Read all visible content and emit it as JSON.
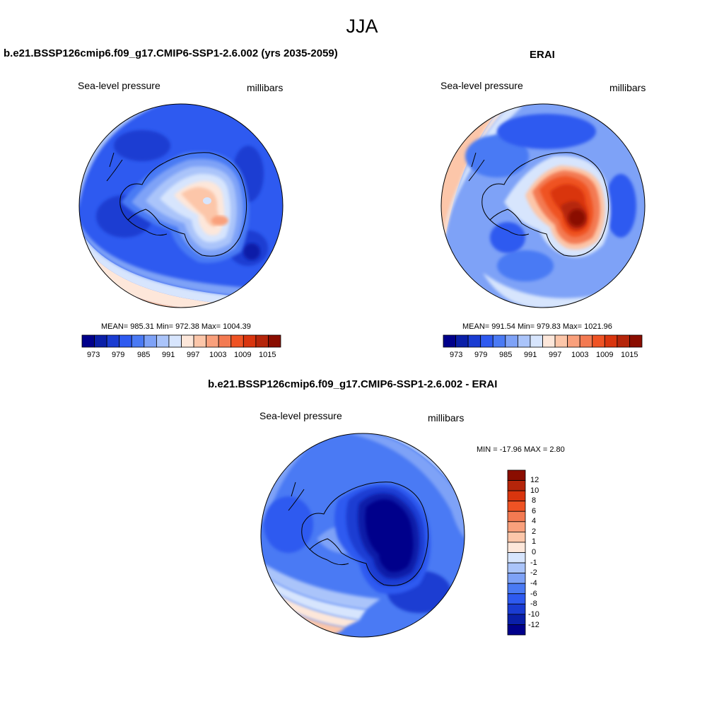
{
  "figure": {
    "title": "JJA"
  },
  "panels": [
    {
      "title": "b.e21.BSSP126cmip6.f09_g17.CMIP6-SSP1-2.6.002 (yrs 2035-2059)",
      "left_label": "Sea-level pressure",
      "right_label": "millibars",
      "stats": "MEAN= 985.31  Min= 972.38  Max= 1004.39",
      "colorbar_labels": [
        "973",
        "979",
        "985",
        "991",
        "997",
        "1003",
        "1009",
        "1015"
      ]
    },
    {
      "title": "ERAI",
      "left_label": "Sea-level pressure",
      "right_label": "millibars",
      "stats": "MEAN= 991.54  Min= 979.83  Max= 1021.96",
      "colorbar_labels": [
        "973",
        "979",
        "985",
        "991",
        "997",
        "1003",
        "1009",
        "1015"
      ]
    },
    {
      "title": "b.e21.BSSP126cmip6.f09_g17.CMIP6-SSP1-2.6.002 - ERAI",
      "left_label": "Sea-level pressure",
      "right_label": "millibars",
      "stats": "MIN = -17.96 MAX =   2.80",
      "colorbar_labels": [
        "12",
        "10",
        "8",
        "6",
        "4",
        "2",
        "1",
        "0",
        "-1",
        "-2",
        "-4",
        "-6",
        "-8",
        "-10",
        "-12"
      ]
    }
  ],
  "colors": {
    "abs_scale": [
      "#00008b",
      "#0a1fa8",
      "#1a3cd2",
      "#2e5af0",
      "#4a7af4",
      "#7ea2f7",
      "#aac4fa",
      "#d7e5fd",
      "#fde7da",
      "#fcc6a9",
      "#f9a07c",
      "#f37a52",
      "#ef5324",
      "#d9350e",
      "#b5250a",
      "#8a0d00"
    ],
    "diff_scale": [
      "#8a0d00",
      "#b5250a",
      "#d9350e",
      "#ef5324",
      "#f37a52",
      "#f9a07c",
      "#fcc6a9",
      "#fde7da",
      "#d7e5fd",
      "#aac4fa",
      "#7ea2f7",
      "#4a7af4",
      "#2e5af0",
      "#1a3cd2",
      "#0a1fa8",
      "#00008b"
    ]
  }
}
